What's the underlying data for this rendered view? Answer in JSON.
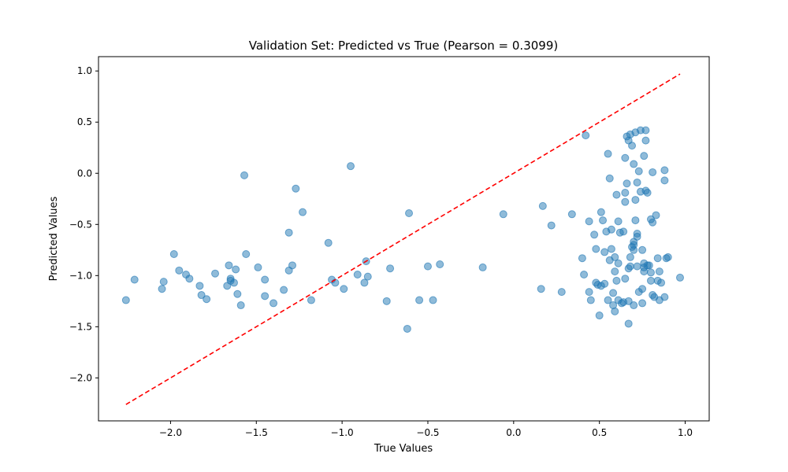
{
  "chart_data": {
    "type": "scatter",
    "title": "Validation Set: Predicted vs True (Pearson = 0.3099)",
    "xlabel": "True Values",
    "ylabel": "Predicted Values",
    "xlim": [
      -2.42,
      1.14
    ],
    "ylim": [
      -2.42,
      1.14
    ],
    "xticks": [
      -2.0,
      -1.5,
      -1.0,
      -0.5,
      0.0,
      0.5,
      1.0
    ],
    "yticks": [
      -2.0,
      -1.5,
      -1.0,
      -0.5,
      0.0,
      0.5,
      1.0
    ],
    "xtick_labels": [
      "−2.0",
      "−1.5",
      "−1.0",
      "−0.5",
      "0.0",
      "0.5",
      "1.0"
    ],
    "ytick_labels": [
      "−2.0",
      "−1.5",
      "−1.0",
      "−0.5",
      "0.0",
      "0.5",
      "1.0"
    ],
    "grid": false,
    "colors": {
      "points": "#1f77b4",
      "reference_line": "#ff0000"
    },
    "reference_line": {
      "style": "dashed",
      "x": [
        -2.26,
        0.97
      ],
      "y": [
        -2.26,
        0.97
      ]
    },
    "points": [
      {
        "x": -2.26,
        "y": -1.24
      },
      {
        "x": -2.21,
        "y": -1.04
      },
      {
        "x": -2.05,
        "y": -1.13
      },
      {
        "x": -2.04,
        "y": -1.06
      },
      {
        "x": -1.98,
        "y": -0.79
      },
      {
        "x": -1.95,
        "y": -0.95
      },
      {
        "x": -1.91,
        "y": -0.99
      },
      {
        "x": -1.89,
        "y": -1.03
      },
      {
        "x": -1.83,
        "y": -1.1
      },
      {
        "x": -1.82,
        "y": -1.19
      },
      {
        "x": -1.79,
        "y": -1.23
      },
      {
        "x": -1.74,
        "y": -0.98
      },
      {
        "x": -1.67,
        "y": -1.1
      },
      {
        "x": -1.66,
        "y": -0.9
      },
      {
        "x": -1.65,
        "y": -1.03
      },
      {
        "x": -1.65,
        "y": -1.05
      },
      {
        "x": -1.63,
        "y": -1.07
      },
      {
        "x": -1.62,
        "y": -0.94
      },
      {
        "x": -1.61,
        "y": -1.18
      },
      {
        "x": -1.59,
        "y": -1.29
      },
      {
        "x": -1.57,
        "y": -0.02
      },
      {
        "x": -1.56,
        "y": -0.79
      },
      {
        "x": -1.49,
        "y": -0.92
      },
      {
        "x": -1.45,
        "y": -1.04
      },
      {
        "x": -1.45,
        "y": -1.2
      },
      {
        "x": -1.4,
        "y": -1.27
      },
      {
        "x": -1.34,
        "y": -1.14
      },
      {
        "x": -1.31,
        "y": -0.58
      },
      {
        "x": -1.31,
        "y": -0.95
      },
      {
        "x": -1.29,
        "y": -0.9
      },
      {
        "x": -1.27,
        "y": -0.15
      },
      {
        "x": -1.23,
        "y": -0.38
      },
      {
        "x": -1.18,
        "y": -1.24
      },
      {
        "x": -1.08,
        "y": -0.68
      },
      {
        "x": -1.06,
        "y": -1.04
      },
      {
        "x": -1.04,
        "y": -1.07
      },
      {
        "x": -0.99,
        "y": -1.13
      },
      {
        "x": -0.95,
        "y": 0.07
      },
      {
        "x": -0.91,
        "y": -0.99
      },
      {
        "x": -0.87,
        "y": -1.07
      },
      {
        "x": -0.86,
        "y": -0.86
      },
      {
        "x": -0.85,
        "y": -1.01
      },
      {
        "x": -0.74,
        "y": -1.25
      },
      {
        "x": -0.72,
        "y": -0.93
      },
      {
        "x": -0.62,
        "y": -1.52
      },
      {
        "x": -0.61,
        "y": -0.39
      },
      {
        "x": -0.55,
        "y": -1.24
      },
      {
        "x": -0.5,
        "y": -0.91
      },
      {
        "x": -0.47,
        "y": -1.24
      },
      {
        "x": -0.43,
        "y": -0.89
      },
      {
        "x": -0.18,
        "y": -0.92
      },
      {
        "x": -0.06,
        "y": -0.4
      },
      {
        "x": 0.16,
        "y": -1.13
      },
      {
        "x": 0.17,
        "y": -0.32
      },
      {
        "x": 0.22,
        "y": -0.51
      },
      {
        "x": 0.28,
        "y": -1.16
      },
      {
        "x": 0.34,
        "y": -0.4
      },
      {
        "x": 0.4,
        "y": -0.83
      },
      {
        "x": 0.41,
        "y": -0.99
      },
      {
        "x": 0.42,
        "y": 0.37
      },
      {
        "x": 0.44,
        "y": -1.16
      },
      {
        "x": 0.44,
        "y": -0.47
      },
      {
        "x": 0.45,
        "y": -1.24
      },
      {
        "x": 0.47,
        "y": -0.6
      },
      {
        "x": 0.48,
        "y": -1.07
      },
      {
        "x": 0.48,
        "y": -0.74
      },
      {
        "x": 0.49,
        "y": -1.09
      },
      {
        "x": 0.5,
        "y": -1.39
      },
      {
        "x": 0.51,
        "y": -1.1
      },
      {
        "x": 0.51,
        "y": -0.38
      },
      {
        "x": 0.52,
        "y": -0.46
      },
      {
        "x": 0.53,
        "y": -0.77
      },
      {
        "x": 0.53,
        "y": -1.08
      },
      {
        "x": 0.54,
        "y": -0.57
      },
      {
        "x": 0.55,
        "y": 0.19
      },
      {
        "x": 0.55,
        "y": -1.24
      },
      {
        "x": 0.56,
        "y": -0.85
      },
      {
        "x": 0.56,
        "y": -0.05
      },
      {
        "x": 0.57,
        "y": -0.55
      },
      {
        "x": 0.57,
        "y": -0.74
      },
      {
        "x": 0.58,
        "y": -1.17
      },
      {
        "x": 0.58,
        "y": -1.29
      },
      {
        "x": 0.59,
        "y": -0.96
      },
      {
        "x": 0.59,
        "y": -0.82
      },
      {
        "x": 0.59,
        "y": -1.35
      },
      {
        "x": 0.6,
        "y": -1.05
      },
      {
        "x": 0.6,
        "y": -0.21
      },
      {
        "x": 0.61,
        "y": -1.24
      },
      {
        "x": 0.61,
        "y": -0.47
      },
      {
        "x": 0.61,
        "y": -0.88
      },
      {
        "x": 0.62,
        "y": -0.58
      },
      {
        "x": 0.63,
        "y": -1.27
      },
      {
        "x": 0.64,
        "y": -0.57
      },
      {
        "x": 0.64,
        "y": -1.26
      },
      {
        "x": 0.65,
        "y": -1.03
      },
      {
        "x": 0.65,
        "y": 0.15
      },
      {
        "x": 0.65,
        "y": -0.28
      },
      {
        "x": 0.65,
        "y": -0.19
      },
      {
        "x": 0.66,
        "y": 0.36
      },
      {
        "x": 0.66,
        "y": -0.1
      },
      {
        "x": 0.67,
        "y": 0.32
      },
      {
        "x": 0.67,
        "y": -0.93
      },
      {
        "x": 0.67,
        "y": -1.25
      },
      {
        "x": 0.67,
        "y": -1.47
      },
      {
        "x": 0.68,
        "y": 0.38
      },
      {
        "x": 0.68,
        "y": -0.82
      },
      {
        "x": 0.68,
        "y": -0.91
      },
      {
        "x": 0.69,
        "y": 0.27
      },
      {
        "x": 0.69,
        "y": -0.72
      },
      {
        "x": 0.7,
        "y": 0.09
      },
      {
        "x": 0.7,
        "y": -0.7
      },
      {
        "x": 0.7,
        "y": -0.67
      },
      {
        "x": 0.7,
        "y": -0.75
      },
      {
        "x": 0.7,
        "y": -1.29
      },
      {
        "x": 0.71,
        "y": -0.46
      },
      {
        "x": 0.71,
        "y": 0.4
      },
      {
        "x": 0.71,
        "y": -0.26
      },
      {
        "x": 0.72,
        "y": -0.91
      },
      {
        "x": 0.72,
        "y": -0.59
      },
      {
        "x": 0.72,
        "y": -0.62
      },
      {
        "x": 0.72,
        "y": -0.09
      },
      {
        "x": 0.73,
        "y": -1.16
      },
      {
        "x": 0.73,
        "y": 0.02
      },
      {
        "x": 0.74,
        "y": 0.42
      },
      {
        "x": 0.74,
        "y": -0.18
      },
      {
        "x": 0.75,
        "y": -1.27
      },
      {
        "x": 0.75,
        "y": -1.13
      },
      {
        "x": 0.75,
        "y": -0.75
      },
      {
        "x": 0.76,
        "y": -0.92
      },
      {
        "x": 0.76,
        "y": -0.96
      },
      {
        "x": 0.76,
        "y": -0.88
      },
      {
        "x": 0.76,
        "y": 0.17
      },
      {
        "x": 0.77,
        "y": 0.42
      },
      {
        "x": 0.77,
        "y": 0.32
      },
      {
        "x": 0.77,
        "y": -0.17
      },
      {
        "x": 0.78,
        "y": -0.9
      },
      {
        "x": 0.78,
        "y": -0.19
      },
      {
        "x": 0.79,
        "y": -0.9
      },
      {
        "x": 0.8,
        "y": -1.05
      },
      {
        "x": 0.8,
        "y": -0.97
      },
      {
        "x": 0.8,
        "y": -0.45
      },
      {
        "x": 0.81,
        "y": -0.48
      },
      {
        "x": 0.81,
        "y": -1.19
      },
      {
        "x": 0.81,
        "y": 0.01
      },
      {
        "x": 0.82,
        "y": -1.21
      },
      {
        "x": 0.83,
        "y": -0.41
      },
      {
        "x": 0.84,
        "y": -0.83
      },
      {
        "x": 0.84,
        "y": -1.05
      },
      {
        "x": 0.85,
        "y": -1.24
      },
      {
        "x": 0.85,
        "y": -0.96
      },
      {
        "x": 0.86,
        "y": -1.07
      },
      {
        "x": 0.88,
        "y": 0.03
      },
      {
        "x": 0.88,
        "y": -0.07
      },
      {
        "x": 0.88,
        "y": -1.21
      },
      {
        "x": 0.89,
        "y": -0.83
      },
      {
        "x": 0.9,
        "y": -0.82
      },
      {
        "x": 0.97,
        "y": -1.02
      }
    ]
  }
}
